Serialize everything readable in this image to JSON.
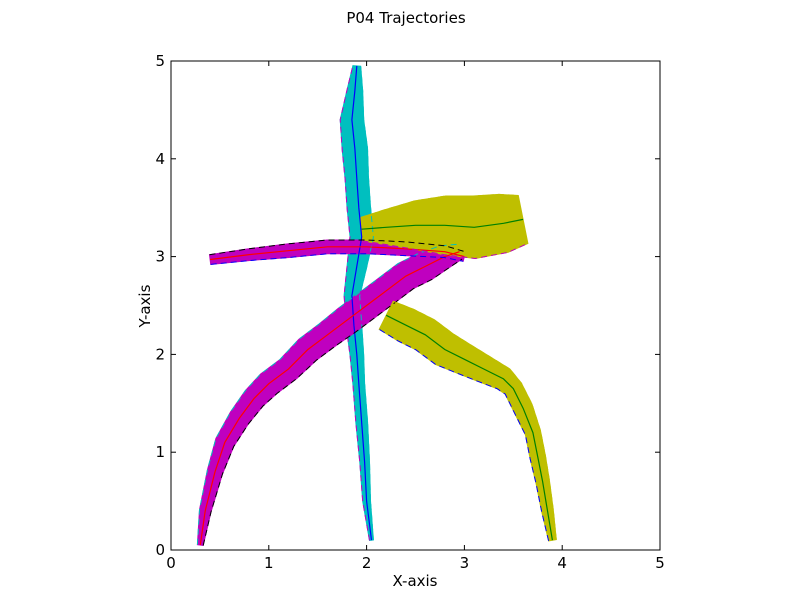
{
  "chart_data": {
    "type": "line",
    "title": "P04 Trajectories",
    "xlabel": "X-axis",
    "ylabel": "Y-axis",
    "xlim": [
      0,
      5
    ],
    "ylim": [
      0,
      5
    ],
    "xticks": [
      "0",
      "1",
      "2",
      "3",
      "4",
      "5"
    ],
    "yticks": [
      "0",
      "1",
      "2",
      "3",
      "4",
      "5"
    ],
    "grid": false,
    "colors": {
      "cyan_band": "#00bfbf",
      "magenta_band": "#bf00bf",
      "olive_band": "#bfbf00",
      "blue": "#0000ff",
      "red": "#ff0000",
      "green": "#008000",
      "black": "#000000",
      "dash_magenta": "#bf00bf",
      "dash_cyan": "#00bfbf",
      "dash_olive": "#bfbf00"
    },
    "series": [
      {
        "color": "blue",
        "band_color": "cyan_band",
        "x": [
          2.05,
          2.0,
          1.98,
          1.95,
          1.92,
          1.9,
          1.87,
          1.85,
          1.9,
          1.95,
          1.92,
          1.9,
          1.88,
          1.85,
          1.88,
          1.9
        ],
        "y": [
          0.1,
          0.5,
          0.9,
          1.3,
          1.7,
          2.0,
          2.3,
          2.6,
          2.9,
          3.2,
          3.5,
          3.8,
          4.1,
          4.4,
          4.7,
          4.95
        ],
        "band_half_width": [
          0.02,
          0.04,
          0.05,
          0.06,
          0.06,
          0.07,
          0.08,
          0.08,
          0.1,
          0.12,
          0.12,
          0.12,
          0.13,
          0.12,
          0.08,
          0.04
        ]
      },
      {
        "color": "red",
        "band_color": "magenta_band",
        "x": [
          0.3,
          0.35,
          0.45,
          0.55,
          0.7,
          0.85,
          1.0,
          1.2,
          1.4,
          1.6,
          1.8,
          2.0,
          2.2,
          2.4,
          2.6,
          2.8,
          2.95
        ],
        "y": [
          0.05,
          0.4,
          0.8,
          1.1,
          1.35,
          1.55,
          1.7,
          1.85,
          2.05,
          2.2,
          2.35,
          2.5,
          2.65,
          2.8,
          2.9,
          3.0,
          3.05
        ],
        "band_half_width": [
          0.03,
          0.06,
          0.08,
          0.1,
          0.11,
          0.12,
          0.13,
          0.13,
          0.14,
          0.14,
          0.15,
          0.15,
          0.15,
          0.15,
          0.15,
          0.12,
          0.08
        ]
      },
      {
        "color": "red",
        "band_color": "magenta_band",
        "x": [
          0.4,
          0.8,
          1.2,
          1.6,
          2.0,
          2.4,
          2.8,
          3.0
        ],
        "y": [
          2.97,
          3.02,
          3.06,
          3.1,
          3.1,
          3.08,
          3.05,
          3.0
        ],
        "band_half_width": [
          0.05,
          0.06,
          0.07,
          0.07,
          0.07,
          0.07,
          0.06,
          0.05
        ]
      },
      {
        "color": "green",
        "band_color": "olive_band",
        "x": [
          3.9,
          3.85,
          3.8,
          3.75,
          3.7,
          3.6,
          3.5,
          3.4,
          3.2,
          3.0,
          2.8,
          2.6,
          2.4,
          2.2
        ],
        "y": [
          0.1,
          0.4,
          0.7,
          0.95,
          1.2,
          1.45,
          1.65,
          1.75,
          1.85,
          1.95,
          2.05,
          2.2,
          2.3,
          2.4
        ],
        "band_half_width": [
          0.04,
          0.06,
          0.07,
          0.08,
          0.08,
          0.1,
          0.1,
          0.12,
          0.14,
          0.16,
          0.18,
          0.18,
          0.18,
          0.16
        ]
      },
      {
        "color": "green",
        "band_color": "olive_band",
        "x": [
          1.95,
          2.2,
          2.5,
          2.8,
          3.1,
          3.4,
          3.6
        ],
        "y": [
          3.28,
          3.3,
          3.32,
          3.32,
          3.3,
          3.34,
          3.38
        ],
        "band_half_width": [
          0.12,
          0.18,
          0.25,
          0.3,
          0.32,
          0.3,
          0.25
        ]
      }
    ]
  }
}
